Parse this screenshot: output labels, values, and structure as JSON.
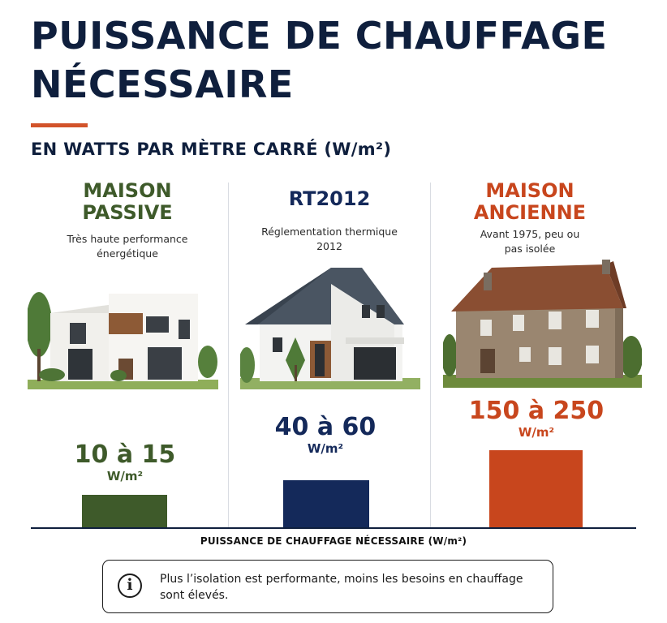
{
  "header": {
    "title_line1": "PUISSANCE DE CHAUFFAGE",
    "title_line2": "NÉCESSAIRE",
    "subtitle": "EN WATTS PAR MÈTRE CARRÉ (W/m²)"
  },
  "columns": [
    {
      "name_line1": "MAISON",
      "name_line2": "PASSIVE",
      "desc_line1": "Très haute performance",
      "desc_line2": "énergétique",
      "value": "10 à 15",
      "unit": "W/m²",
      "color": "#3e5a2a"
    },
    {
      "name_line1": "RT2012",
      "name_line2": "",
      "desc_line1": "Réglementation thermique",
      "desc_line2": "2012",
      "value": "40 à 60",
      "unit": "W/m²",
      "color": "#14295a"
    },
    {
      "name_line1": "MAISON",
      "name_line2": "ANCIENNE",
      "desc_line1": "Avant 1975, peu ou",
      "desc_line2": "pas isolée",
      "value": "150 à 250",
      "unit": "W/m²",
      "color": "#c8461d"
    }
  ],
  "chart_data": {
    "type": "bar",
    "categories": [
      "MAISON PASSIVE",
      "RT2012",
      "MAISON ANCIENNE"
    ],
    "ranges": [
      [
        10,
        15
      ],
      [
        40,
        60
      ],
      [
        150,
        250
      ]
    ],
    "values": [
      15,
      60,
      250
    ],
    "value_labels": [
      "10 à 15",
      "40 à 60",
      "150 à 250"
    ],
    "colors": [
      "#3e5a2a",
      "#14295a",
      "#c8461d"
    ],
    "title": "PUISSANCE DE CHAUFFAGE NÉCESSAIRE",
    "subtitle": "EN WATTS PAR MÈTRE CARRÉ (W/m²)",
    "xlabel": "PUISSANCE DE CHAUFFAGE NÉCESSAIRE (W/m²)",
    "ylabel": "",
    "unit": "W/m²",
    "grid": false,
    "legend": "none"
  },
  "footer": {
    "info_icon": "info-icon",
    "info_text": "Plus l’isolation est performante, moins les besoins en chauffage sont élevés."
  }
}
